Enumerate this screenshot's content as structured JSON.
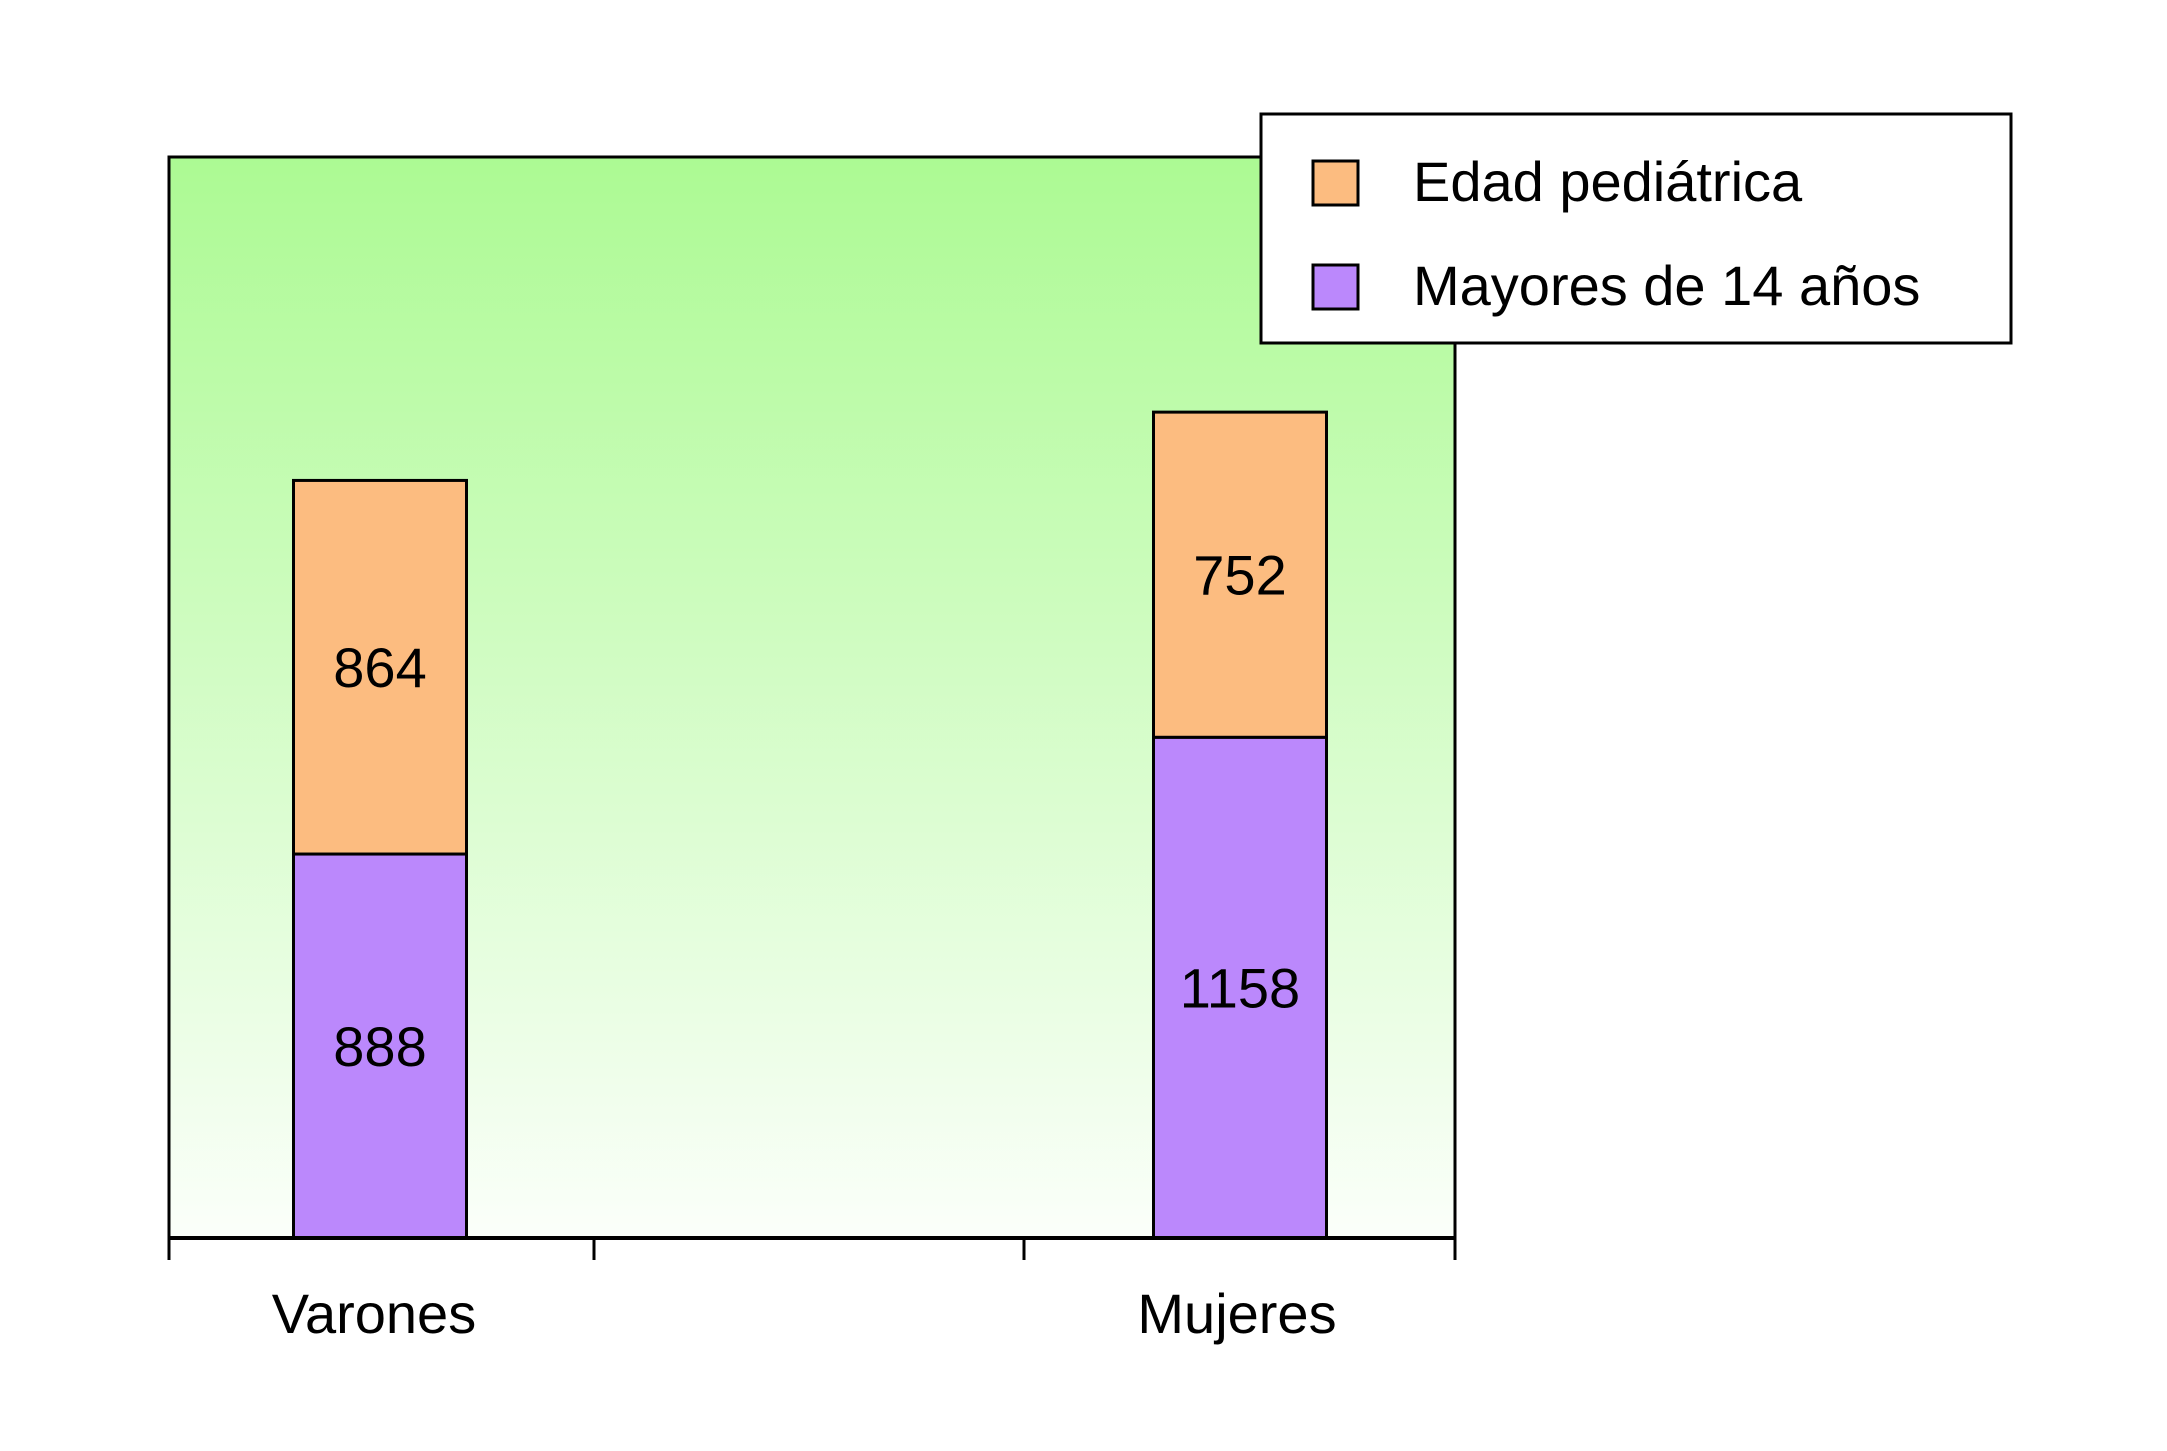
{
  "chart_data": {
    "type": "bar",
    "stacked": true,
    "categories": [
      "Varones",
      "Mujeres"
    ],
    "series": [
      {
        "name": "Mayores de 14 años",
        "values": [
          888,
          1158
        ],
        "color": "#bb88fc"
      },
      {
        "name": "Edad pediátrica",
        "values": [
          864,
          752
        ],
        "color": "#fcbc80"
      }
    ],
    "ylim": [
      0,
      2500
    ],
    "title": "",
    "xlabel": "",
    "ylabel": "",
    "grid": false,
    "legend_position": "top-right",
    "legend_order": [
      "Edad pediátrica",
      "Mayores de 14 años"
    ],
    "plot_background": {
      "top": "#acfa93",
      "bottom": "#fbfffa"
    }
  }
}
